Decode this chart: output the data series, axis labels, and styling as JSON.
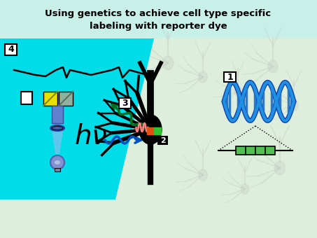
{
  "title_line1": "Using genetics to achieve cell type specific",
  "title_line2": "labeling with reporter dye",
  "bg_mint": "#c8efe8",
  "bg_cyan": "#00dde8",
  "bg_light": "#e8f4f0",
  "dna_dark": "#1040b0",
  "dna_light": "#2090e0",
  "dna_mid": "#1870d0",
  "neuron_black": "#0a0a0a",
  "ghost_color": "#c0c8c0",
  "orange_box": "#e05010",
  "green_box": "#30c030",
  "resistor_green": "#50c050",
  "arrow_green": "#007020",
  "arrow_blue": "#0050c0",
  "hv_color": "#000000",
  "figsize": [
    4.53,
    3.4
  ],
  "dpi": 100
}
